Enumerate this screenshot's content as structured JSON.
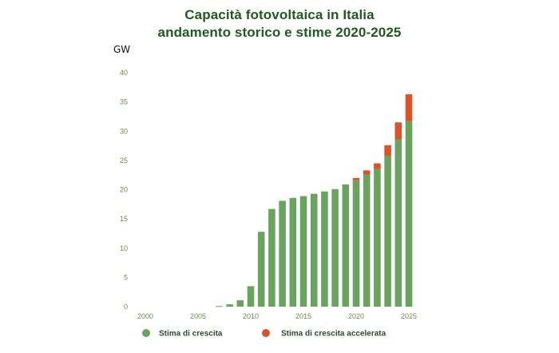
{
  "chart_data": {
    "type": "bar",
    "title_lines": [
      "Capacità fotovoltaica in Italia",
      "andamento storico e stime 2020-2025"
    ],
    "ylabel": "GW",
    "ylim": [
      0,
      40
    ],
    "yticks": [
      0,
      5,
      10,
      15,
      20,
      25,
      30,
      35,
      40
    ],
    "xticks": [
      "2000",
      "2005",
      "2010",
      "2015",
      "2020",
      "2025"
    ],
    "xlim": [
      2000,
      2025
    ],
    "categories": [
      2000,
      2001,
      2002,
      2003,
      2004,
      2005,
      2006,
      2007,
      2008,
      2009,
      2010,
      2011,
      2012,
      2013,
      2014,
      2015,
      2016,
      2017,
      2018,
      2019,
      2020,
      2021,
      2022,
      2023,
      2024,
      2025
    ],
    "stacked": true,
    "series": [
      {
        "name": "Stima di crescita",
        "color": "#6aa35e",
        "values": [
          0.0,
          0.0,
          0.0,
          0.0,
          0.0,
          0.0,
          0.0,
          0.1,
          0.4,
          1.1,
          3.5,
          12.8,
          16.7,
          18.1,
          18.6,
          18.9,
          19.3,
          19.7,
          20.1,
          20.9,
          21.6,
          22.6,
          23.5,
          25.8,
          28.6,
          31.7
        ]
      },
      {
        "name": "Stima di crescita accelerata",
        "color": "#d9532b",
        "values": [
          0,
          0,
          0,
          0,
          0,
          0,
          0,
          0,
          0,
          0,
          0,
          0,
          0,
          0,
          0,
          0,
          0,
          0,
          0,
          0,
          0.4,
          0.7,
          1.0,
          1.8,
          2.9,
          4.6
        ]
      }
    ],
    "legend_position": "bottom"
  }
}
